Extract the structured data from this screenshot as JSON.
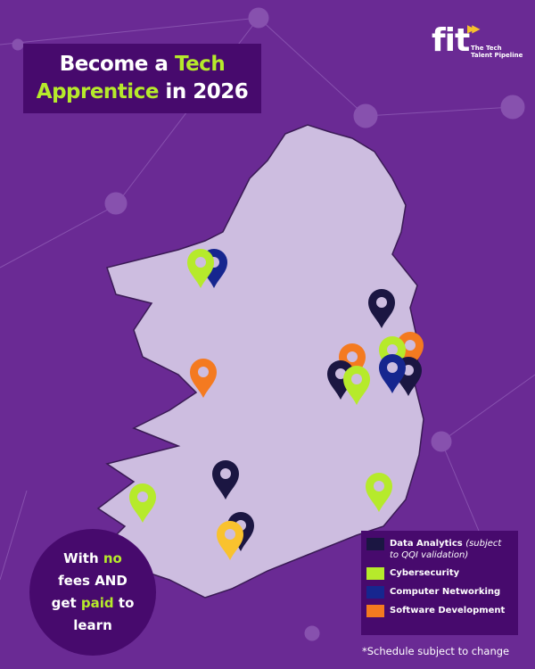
{
  "title": {
    "line1_a": "Become a ",
    "line1_b": "Tech",
    "line2_a": "Apprentice",
    "line2_b": " in 2026"
  },
  "logo": {
    "text": "fit",
    "tagline": "The Tech Talent Pipeline"
  },
  "badge": {
    "p1": "With ",
    "p2": "no",
    "p3": "fees",
    "p4": " AND",
    "p5": "get ",
    "p6": "paid",
    "p7": " to",
    "p8": "learn"
  },
  "legend": [
    {
      "label": "Data Analytics",
      "note": "(subject to QQI validation)",
      "color": "#1b1642"
    },
    {
      "label": "Cybersecurity",
      "note": "",
      "color": "#b6ea2b"
    },
    {
      "label": "Computer Networking",
      "note": "",
      "color": "#16268f"
    },
    {
      "label": "Software Development",
      "note": "",
      "color": "#f47a20"
    }
  ],
  "extra_pin_color": "#f9c22e",
  "footnote": "*Schedule subject to change",
  "colors": {
    "background": "#6a2a94",
    "panel": "#470a6d",
    "map": "#cdbde0",
    "accent": "#b6ea2b"
  }
}
